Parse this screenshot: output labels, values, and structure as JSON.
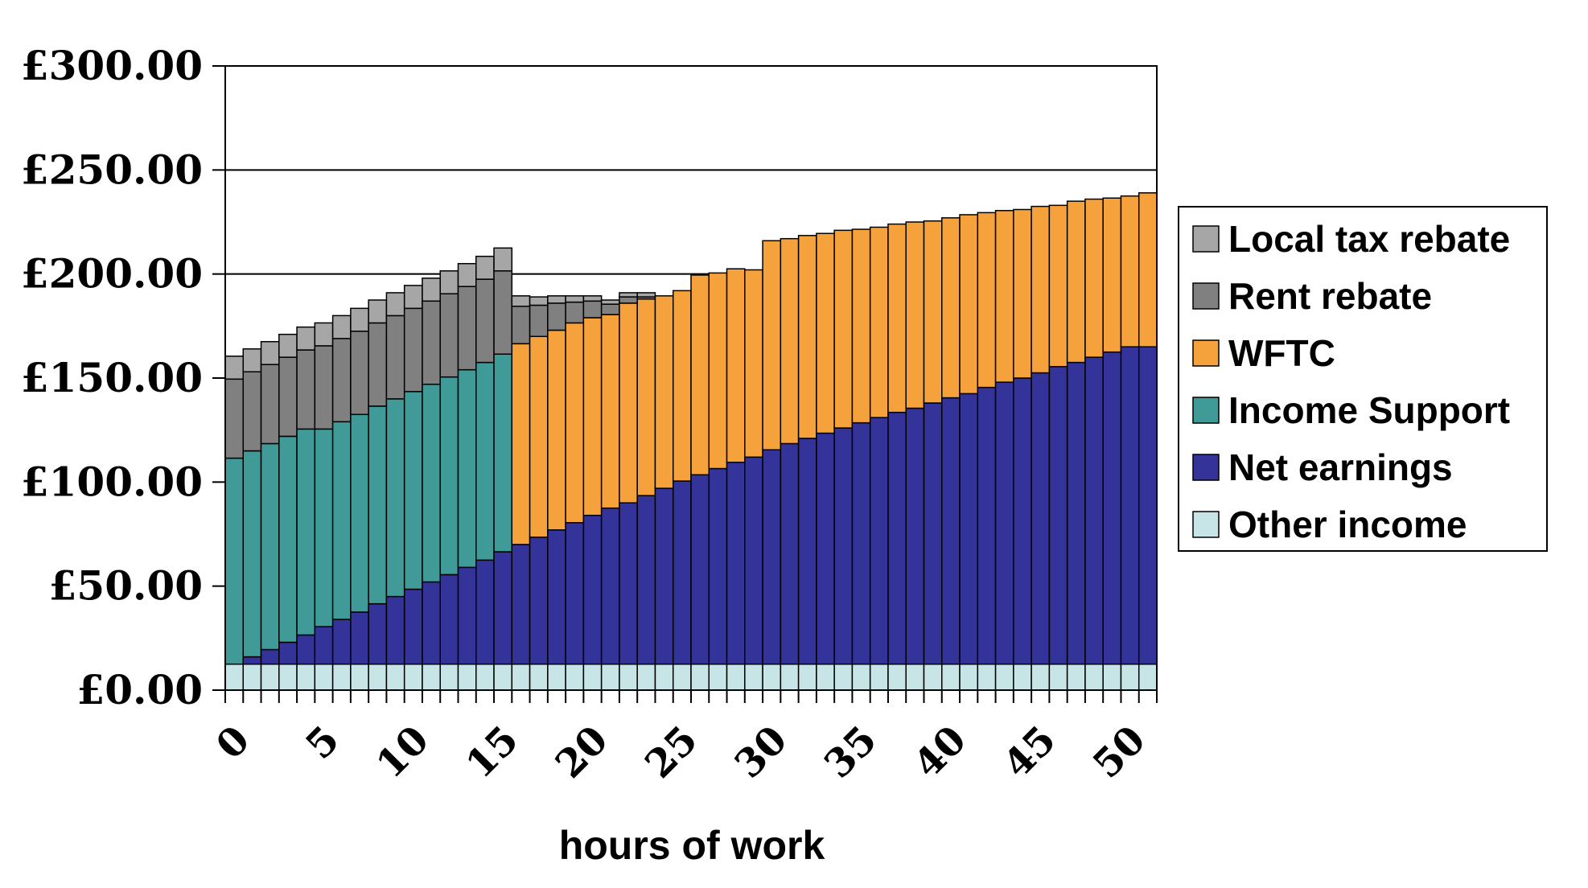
{
  "chart_data": {
    "type": "bar",
    "stacked": true,
    "xlabel": "hours of work",
    "ylabel": "",
    "ylim": [
      0,
      300
    ],
    "xlim": [
      0,
      52
    ],
    "y_ticks": [
      0,
      50,
      100,
      150,
      200,
      250,
      300
    ],
    "y_tick_labels": [
      "£0.00",
      "£50.00",
      "£100.00",
      "£150.00",
      "£200.00",
      "£250.00",
      "£300.00"
    ],
    "x_ticks": [
      0,
      5,
      10,
      15,
      20,
      25,
      30,
      35,
      40,
      45,
      50
    ],
    "x_tick_labels": [
      "0",
      "5",
      "10",
      "15",
      "20",
      "25",
      "30",
      "35",
      "40",
      "45",
      "50"
    ],
    "grid": "horizontal",
    "legend_position": "right",
    "x": [
      1,
      2,
      3,
      4,
      5,
      6,
      7,
      8,
      9,
      10,
      11,
      12,
      13,
      14,
      15,
      16,
      17,
      18,
      19,
      20,
      21,
      22,
      23,
      24,
      25,
      26,
      27,
      28,
      29,
      30,
      31,
      32,
      33,
      34,
      35,
      36,
      37,
      38,
      39,
      40,
      41,
      42,
      43,
      44,
      45,
      46,
      47,
      48,
      49,
      50,
      51,
      52
    ],
    "series": [
      {
        "name": "Other income",
        "color": "#c7e4e6",
        "values": [
          12.5,
          12.5,
          12.5,
          12.5,
          12.5,
          12.5,
          12.5,
          12.5,
          12.5,
          12.5,
          12.5,
          12.5,
          12.5,
          12.5,
          12.5,
          12.5,
          12.5,
          12.5,
          12.5,
          12.5,
          12.5,
          12.5,
          12.5,
          12.5,
          12.5,
          12.5,
          12.5,
          12.5,
          12.5,
          12.5,
          12.5,
          12.5,
          12.5,
          12.5,
          12.5,
          12.5,
          12.5,
          12.5,
          12.5,
          12.5,
          12.5,
          12.5,
          12.5,
          12.5,
          12.5,
          12.5,
          12.5,
          12.5,
          12.5,
          12.5,
          12.5,
          12.5
        ]
      },
      {
        "name": "Net earnings",
        "color": "#333399",
        "values": [
          0,
          3.5,
          7,
          10.5,
          14,
          18,
          21.5,
          25,
          29,
          32.5,
          36,
          39.5,
          43,
          46.5,
          50,
          54,
          57.5,
          61,
          64.5,
          68,
          71.5,
          75,
          77.5,
          81,
          84.5,
          88,
          91,
          94,
          97,
          99.5,
          103,
          106,
          108.5,
          111,
          113.5,
          116,
          118.5,
          121,
          123,
          125.5,
          128,
          130,
          133,
          135.5,
          137.5,
          140,
          143,
          145,
          147.5,
          150,
          152.5,
          152.5
        ]
      },
      {
        "name": "Income Support",
        "color": "#3f9a98",
        "values": [
          99,
          99,
          99,
          99,
          99,
          95,
          95,
          95,
          95,
          95,
          95,
          95,
          95,
          95,
          95,
          95,
          0,
          0,
          0,
          0,
          0,
          0,
          0,
          0,
          0,
          0,
          0,
          0,
          0,
          0,
          0,
          0,
          0,
          0,
          0,
          0,
          0,
          0,
          0,
          0,
          0,
          0,
          0,
          0,
          0,
          0,
          0,
          0,
          0,
          0,
          0,
          0
        ]
      },
      {
        "name": "WFTC",
        "color": "#f6a23c",
        "values": [
          0,
          0,
          0,
          0,
          0,
          0,
          0,
          0,
          0,
          0,
          0,
          0,
          0,
          0,
          0,
          0,
          96.5,
          96.5,
          96,
          96,
          95,
          93,
          96,
          94.5,
          92.5,
          91.5,
          96,
          94,
          93,
          90,
          100.5,
          98.5,
          97.5,
          96,
          95,
          93,
          91.5,
          90.5,
          89.5,
          87.5,
          86.5,
          86,
          84,
          82.5,
          81,
          80,
          77.5,
          77.5,
          76,
          74,
          72.5,
          74
        ]
      },
      {
        "name": "Rent rebate",
        "color": "#808080",
        "values": [
          38,
          38,
          38,
          38,
          38,
          40,
          40,
          40,
          40,
          40,
          40,
          40,
          40,
          40,
          40,
          40,
          18,
          15,
          13,
          10,
          8,
          5,
          3,
          1,
          0,
          0,
          0,
          0,
          0,
          0,
          0,
          0,
          0,
          0,
          0,
          0,
          0,
          0,
          0,
          0,
          0,
          0,
          0,
          0,
          0,
          0,
          0,
          0,
          0,
          0,
          0,
          0
        ]
      },
      {
        "name": "Local tax rebate",
        "color": "#a6a6a6",
        "values": [
          11,
          11,
          11,
          11,
          11,
          11,
          11,
          11,
          11,
          11,
          11,
          11,
          11,
          11,
          11,
          11,
          5,
          4,
          3.5,
          3,
          2.5,
          2,
          2,
          2,
          0,
          0,
          0,
          0,
          0,
          0,
          0,
          0,
          0,
          0,
          0,
          0,
          0,
          0,
          0,
          0,
          0,
          0,
          0,
          0,
          0,
          0,
          0,
          0,
          0,
          0,
          0,
          0
        ]
      }
    ],
    "legend_order": [
      "Local tax rebate",
      "Rent rebate",
      "WFTC",
      "Income Support",
      "Net earnings",
      "Other income"
    ]
  }
}
